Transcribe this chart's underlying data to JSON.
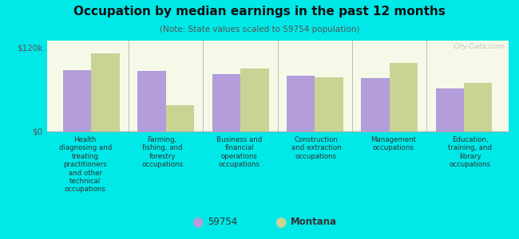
{
  "title": "Occupation by median earnings in the past 12 months",
  "subtitle": "(Note: State values scaled to 59754 population)",
  "background_color": "#00e8e8",
  "plot_bg_gradient_top": "#e8f0c8",
  "plot_bg_gradient_bottom": "#f5fae8",
  "bar_color_59754": "#b39ddb",
  "bar_color_montana": "#c8d494",
  "categories": [
    "Health\ndiagnosing and\ntreating\npractitioners\nand other\ntechnical\noccupations",
    "Farming,\nfishing, and\nforestry\noccupations",
    "Business and\nfinancial\noperations\noccupations",
    "Construction\nand extraction\noccupations",
    "Management\noccupations",
    "Education,\ntraining, and\nlibrary\noccupations"
  ],
  "values_59754": [
    88000,
    87000,
    82000,
    80000,
    76000,
    62000
  ],
  "values_montana": [
    112000,
    38000,
    90000,
    78000,
    98000,
    70000
  ],
  "ylim": [
    0,
    130000
  ],
  "yticks": [
    0,
    120000
  ],
  "ytick_labels": [
    "$0",
    "$120k"
  ],
  "legend_labels": [
    "59754",
    "Montana"
  ],
  "watermark": "City-Data.com"
}
